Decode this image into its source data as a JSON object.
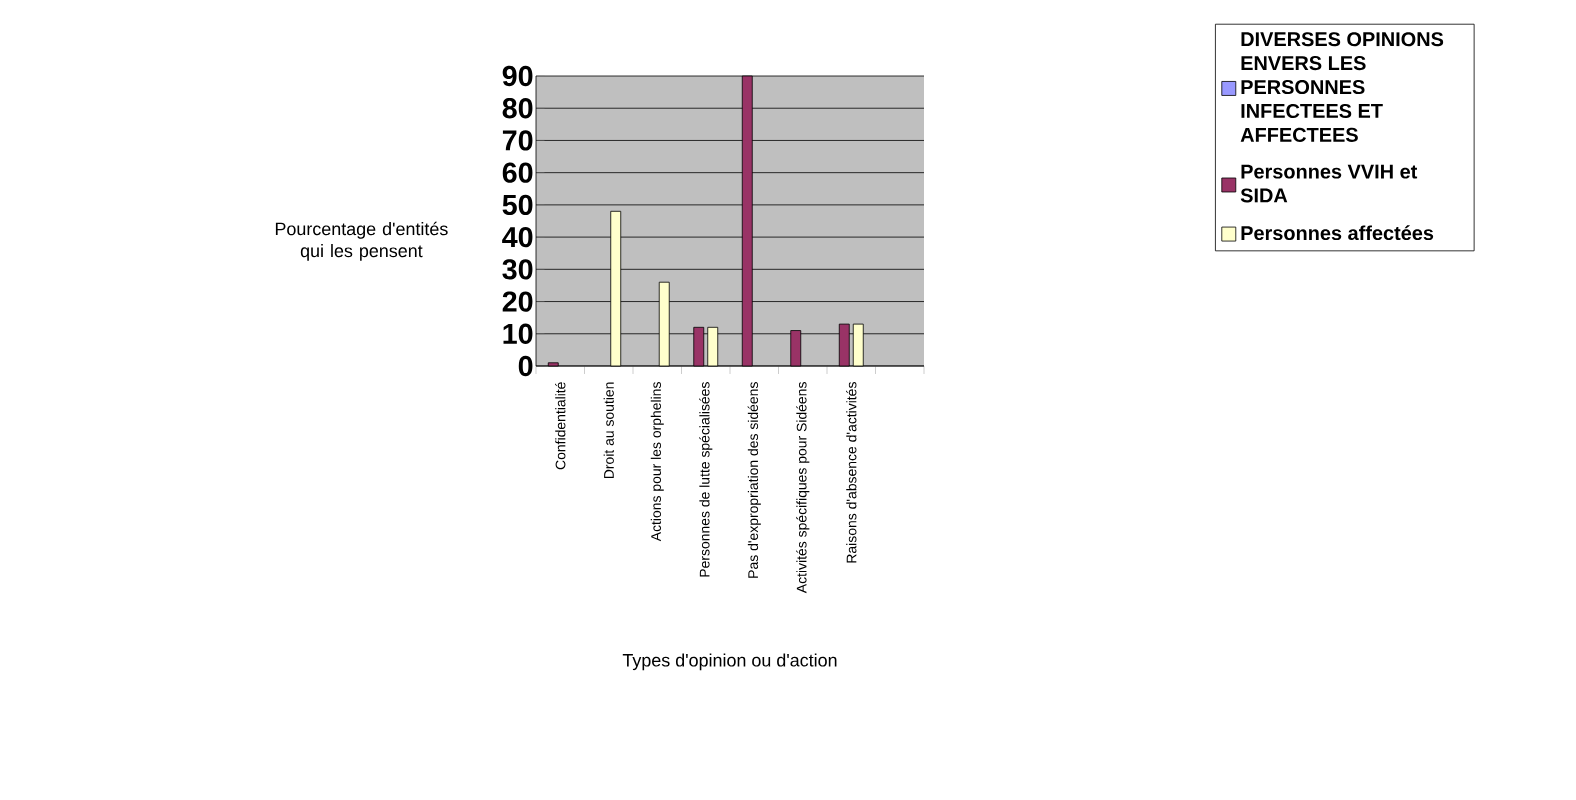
{
  "chart_data": {
    "type": "bar",
    "xlabel": "Types d'opinion ou d'action",
    "ylabel": "Pourcentage d'entités qui les pensent",
    "categories": [
      "Confidentialité",
      "Droit au soutien",
      "Actions pour les orphelins",
      "Personnes de lutte spécialisées",
      "Pas d'expropriation des sidéens",
      "Activités spécifiques pour Sidéens",
      "Raisons d'absence d'activités",
      null
    ],
    "series": [
      {
        "name": "DIVERSES OPINIONS ENVERS LES PERSONNES INFECTEES ET AFFECTEES",
        "color": "#9999ff",
        "values": [
          null,
          null,
          null,
          null,
          null,
          null,
          null,
          null
        ]
      },
      {
        "name": "Personnes VVIH et SIDA",
        "color": "#993366",
        "values": [
          1,
          null,
          null,
          12,
          90,
          11,
          13,
          null
        ]
      },
      {
        "name": "Personnes affectées",
        "color": "#ffffcc",
        "values": [
          null,
          48,
          26,
          12,
          null,
          null,
          13,
          null
        ]
      }
    ],
    "ylim": [
      0,
      90
    ],
    "yticks": [
      0,
      10,
      20,
      30,
      40,
      50,
      60,
      70,
      80,
      90
    ],
    "grid": "y",
    "legend": "right"
  }
}
